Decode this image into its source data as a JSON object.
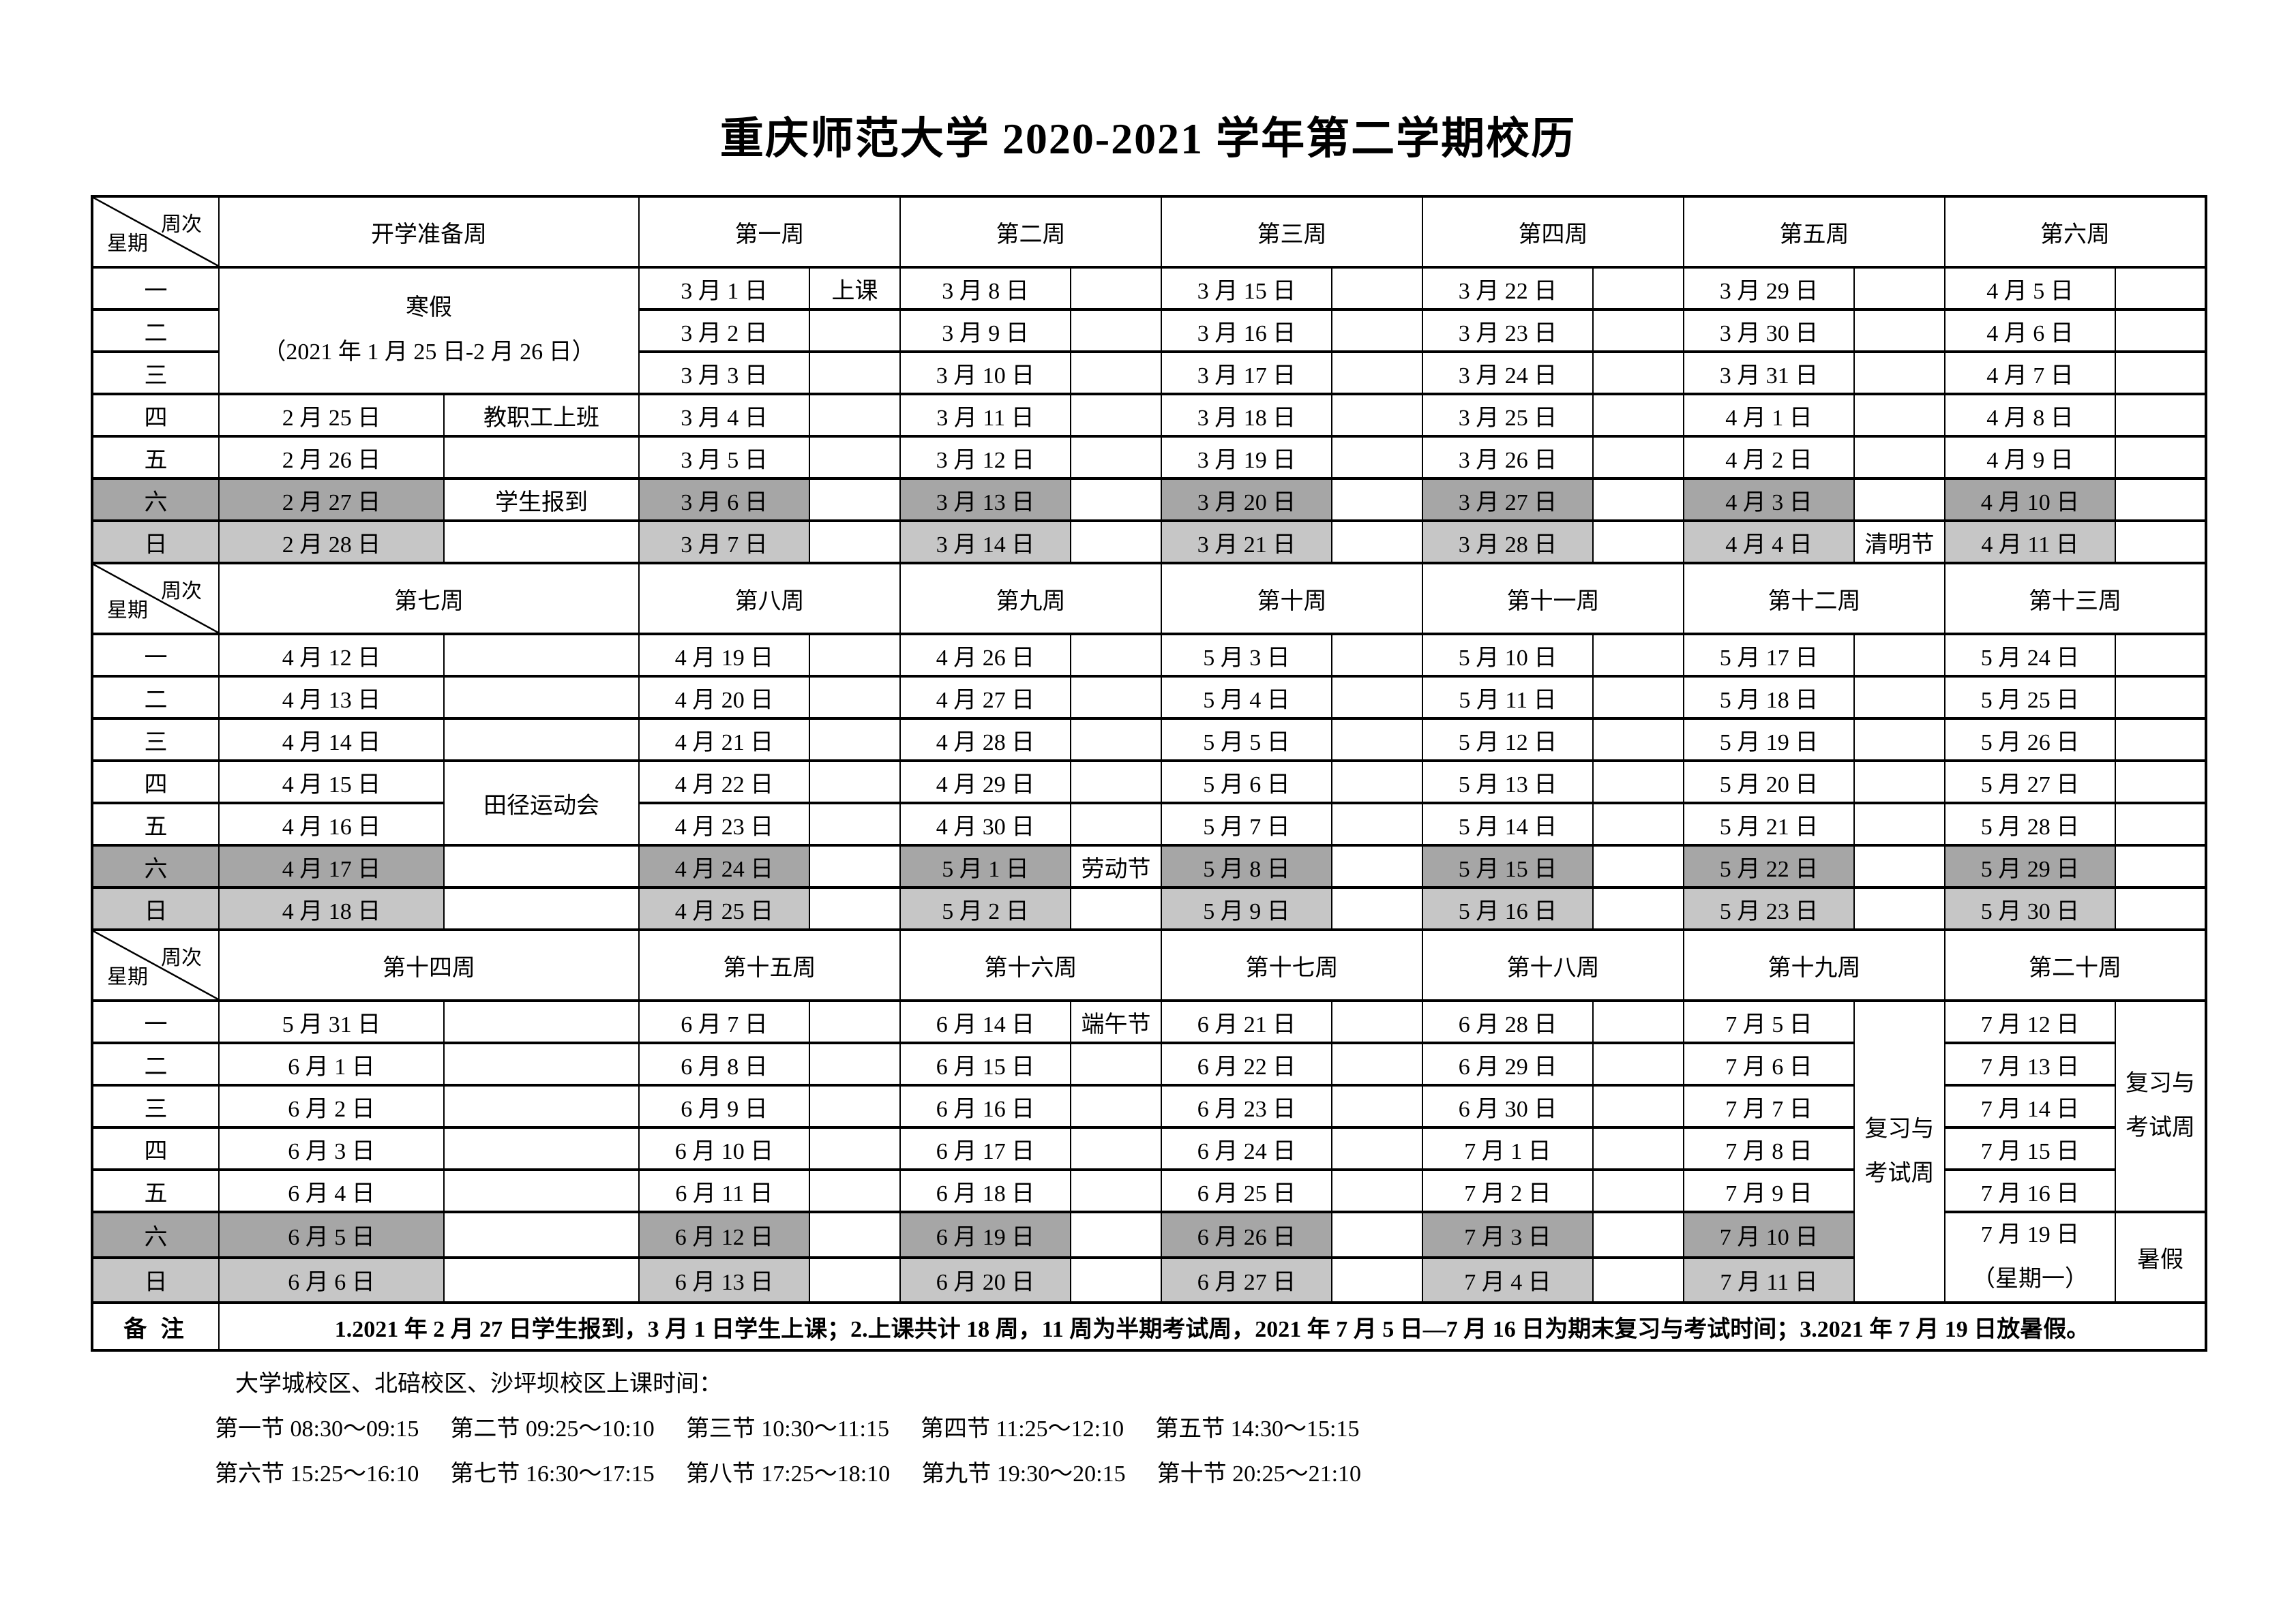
{
  "title": "重庆师范大学 2020-2021 学年第二学期校历",
  "calendar": {
    "corner": {
      "top": "周次",
      "bottom": "星期"
    },
    "weekday_labels": [
      "一",
      "二",
      "三",
      "四",
      "五",
      "六",
      "日"
    ],
    "gray_colors": {
      "saturday_row": "#a6a6a6",
      "sunday_row": "#c6c6c6"
    },
    "sections": [
      {
        "week_headers": [
          "开学准备周",
          "第一周",
          "第二周",
          "第三周",
          "第四周",
          "第五周",
          "第六周"
        ],
        "rows": [
          [
            {
              "t": "寒假\n（2021 年 1 月 25 日-2 月 26 日）",
              "cs": 2,
              "rs": 3,
              "n": "winter-vacation-cell"
            },
            "3 月 1 日",
            "上课",
            "3 月 8 日",
            "",
            "3 月 15 日",
            "",
            "3 月 22 日",
            "",
            "3 月 29 日",
            "",
            "4 月 5 日",
            ""
          ],
          [
            "3 月 2 日",
            "",
            "3 月 9 日",
            "",
            "3 月 16 日",
            "",
            "3 月 23 日",
            "",
            "3 月 30 日",
            "",
            "4 月 6 日",
            ""
          ],
          [
            "3 月 3 日",
            "",
            "3 月 10 日",
            "",
            "3 月 17 日",
            "",
            "3 月 24 日",
            "",
            "3 月 31 日",
            "",
            "4 月 7 日",
            ""
          ],
          [
            "2 月 25 日",
            "教职工上班",
            "3 月 4 日",
            "",
            "3 月 11 日",
            "",
            "3 月 18 日",
            "",
            "3 月 25 日",
            "",
            "4 月 1 日",
            "",
            "4 月 8 日",
            ""
          ],
          [
            "2 月 26 日",
            "",
            "3 月 5 日",
            "",
            "3 月 12 日",
            "",
            "3 月 19 日",
            "",
            "3 月 26 日",
            "",
            "4 月 2 日",
            "",
            "4 月 9 日",
            ""
          ],
          [
            "2 月 27 日",
            "学生报到",
            "3 月 6 日",
            "",
            "3 月 13 日",
            "",
            "3 月 20 日",
            "",
            "3 月 27 日",
            "",
            "4 月 3 日",
            "",
            "4 月 10 日",
            ""
          ],
          [
            "2 月 28 日",
            "",
            "3 月 7 日",
            "",
            "3 月 14 日",
            "",
            "3 月 21 日",
            "",
            "3 月 28 日",
            "",
            "4 月 4 日",
            "清明节",
            "4 月 11 日",
            ""
          ]
        ]
      },
      {
        "week_headers": [
          "第七周",
          "第八周",
          "第九周",
          "第十周",
          "第十一周",
          "第十二周",
          "第十三周"
        ],
        "rows": [
          [
            "4 月 12 日",
            "",
            "4 月 19 日",
            "",
            "4 月 26 日",
            "",
            "5 月 3 日",
            "",
            "5 月 10 日",
            "",
            "5 月 17 日",
            "",
            "5 月 24 日",
            ""
          ],
          [
            "4 月 13 日",
            "",
            "4 月 20 日",
            "",
            "4 月 27 日",
            "",
            "5 月 4 日",
            "",
            "5 月 11 日",
            "",
            "5 月 18 日",
            "",
            "5 月 25 日",
            ""
          ],
          [
            "4 月 14 日",
            "",
            "4 月 21 日",
            "",
            "4 月 28 日",
            "",
            "5 月 5 日",
            "",
            "5 月 12 日",
            "",
            "5 月 19 日",
            "",
            "5 月 26 日",
            ""
          ],
          [
            "4 月 15 日",
            {
              "t": "田径运动会",
              "rs": 2,
              "n": "sports-meet-cell"
            },
            "4 月 22 日",
            "",
            "4 月 29 日",
            "",
            "5 月 6 日",
            "",
            "5 月 13 日",
            "",
            "5 月 20 日",
            "",
            "5 月 27 日",
            ""
          ],
          [
            "4 月 16 日",
            "4 月 23 日",
            "",
            "4 月 30 日",
            "",
            "5 月 7 日",
            "",
            "5 月 14 日",
            "",
            "5 月 21 日",
            "",
            "5 月 28 日",
            ""
          ],
          [
            "4 月 17 日",
            "",
            "4 月 24 日",
            "",
            "5 月 1 日",
            "劳动节",
            "5 月 8 日",
            "",
            "5 月 15 日",
            "",
            "5 月 22 日",
            "",
            "5 月 29 日",
            ""
          ],
          [
            "4 月 18 日",
            "",
            "4 月 25 日",
            "",
            "5 月 2 日",
            "",
            "5 月 9 日",
            "",
            "5 月 16 日",
            "",
            "5 月 23 日",
            "",
            "5 月 30 日",
            ""
          ]
        ]
      },
      {
        "week_headers": [
          "第十四周",
          "第十五周",
          "第十六周",
          "第十七周",
          "第十八周",
          "第十九周",
          "第二十周"
        ],
        "rows": [
          [
            "5 月 31 日",
            "",
            "6 月 7 日",
            "",
            "6 月 14 日",
            "端午节",
            "6 月 21 日",
            "",
            "6 月 28 日",
            "",
            "7 月 5 日",
            {
              "t": "复习与\n考试周",
              "rs": 7,
              "n": "review-exam-week-cell"
            },
            "7 月 12 日",
            {
              "t": "复习与\n考试周",
              "rs": 5,
              "n": "review-exam-week-cell"
            }
          ],
          [
            "6 月 1 日",
            "",
            "6 月 8 日",
            "",
            "6 月 15 日",
            "",
            "6 月 22 日",
            "",
            "6 月 29 日",
            "",
            "7 月 6 日",
            "7 月 13 日"
          ],
          [
            "6 月 2 日",
            "",
            "6 月 9 日",
            "",
            "6 月 16 日",
            "",
            "6 月 23 日",
            "",
            "6 月 30 日",
            "",
            "7 月 7 日",
            "7 月 14 日"
          ],
          [
            "6 月 3 日",
            "",
            "6 月 10 日",
            "",
            "6 月 17 日",
            "",
            "6 月 24 日",
            "",
            "7 月 1 日",
            "",
            "7 月 8 日",
            "7 月 15 日"
          ],
          [
            "6 月 4 日",
            "",
            "6 月 11 日",
            "",
            "6 月 18 日",
            "",
            "6 月 25 日",
            "",
            "7 月 2 日",
            "",
            "7 月 9 日",
            "7 月 16 日"
          ],
          [
            "6 月 5 日",
            "",
            "6 月 12 日",
            "",
            "6 月 19 日",
            "",
            "6 月 26 日",
            "",
            "7 月 3 日",
            "",
            "7 月 10 日",
            {
              "t": "7 月 19 日\n（星期一）",
              "rs": 2,
              "n": "summer-vacation-start-cell"
            },
            {
              "t": "暑假",
              "rs": 2,
              "n": "summer-vacation-cell"
            }
          ],
          [
            "6 月 6 日",
            "",
            "6 月 13 日",
            "",
            "6 月 20 日",
            "",
            "6 月 27 日",
            "",
            "7 月 4 日",
            "",
            "7 月 11 日"
          ]
        ]
      }
    ]
  },
  "remark": {
    "label": "备 注",
    "text": "1.2021 年 2 月 27 日学生报到，3 月 1 日学生上课；2.上课共计 18 周，11 周为半期考试周，2021 年 7 月 5 日—7 月 16 日为期末复习与考试时间；3.2021 年 7 月 19 日放暑假。"
  },
  "footer": {
    "campus_line": "大学城校区、北碚校区、沙坪坝校区上课时间：",
    "periods_row1": [
      {
        "label": "第一节",
        "time": "08:30～09:15"
      },
      {
        "label": "第二节",
        "time": "09:25～10:10"
      },
      {
        "label": "第三节",
        "time": "10:30～11:15"
      },
      {
        "label": "第四节",
        "time": "11:25～12:10"
      },
      {
        "label": "第五节",
        "time": "14:30～15:15"
      }
    ],
    "periods_row2": [
      {
        "label": "第六节",
        "time": "15:25～16:10"
      },
      {
        "label": "第七节",
        "time": "16:30～17:15"
      },
      {
        "label": "第八节",
        "time": "17:25～18:10"
      },
      {
        "label": "第九节",
        "time": "19:30～20:15"
      },
      {
        "label": "第十节",
        "time": "20:25～21:10"
      }
    ]
  }
}
